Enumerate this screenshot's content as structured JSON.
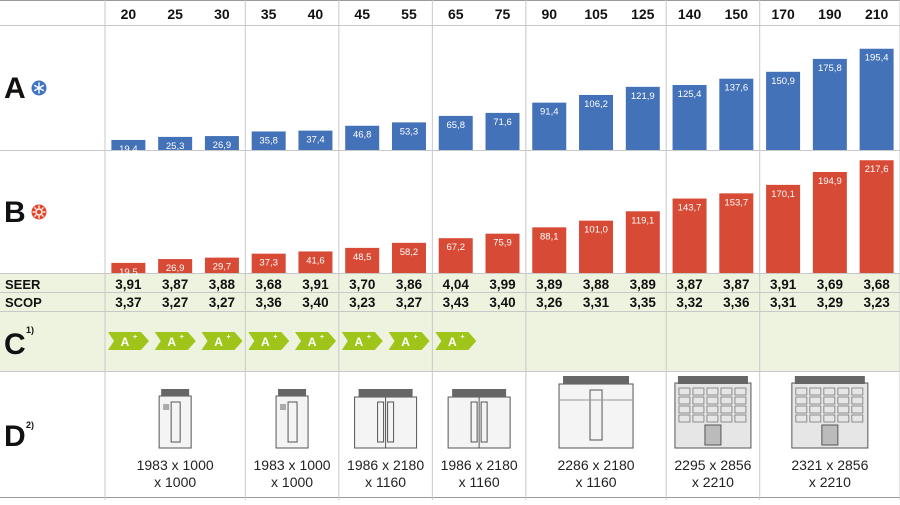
{
  "models": [
    "20",
    "25",
    "30",
    "35",
    "40",
    "45",
    "55",
    "65",
    "75",
    "90",
    "105",
    "125",
    "140",
    "150",
    "170",
    "190",
    "210"
  ],
  "chart_data": [
    {
      "type": "bar",
      "name": "A",
      "categories": [
        "20",
        "25",
        "30",
        "35",
        "40",
        "45",
        "55",
        "65",
        "75",
        "90",
        "105",
        "125",
        "140",
        "150",
        "170",
        "190",
        "210"
      ],
      "values": [
        19.4,
        25.3,
        26.9,
        35.8,
        37.4,
        46.8,
        53.3,
        65.8,
        71.6,
        91.4,
        106.2,
        121.9,
        125.4,
        137.6,
        150.9,
        175.8,
        195.4
      ],
      "labels": [
        "19,4",
        "25,3",
        "26,9",
        "35,8",
        "37,4",
        "46,8",
        "53,3",
        "65,8",
        "71,6",
        "91,4",
        "106,2",
        "121,9",
        "125,4",
        "137,6",
        "150,9",
        "175,8",
        "195,4"
      ],
      "ylim": [
        0,
        220
      ],
      "color": "#4472b8"
    },
    {
      "type": "bar",
      "name": "B",
      "categories": [
        "20",
        "25",
        "30",
        "35",
        "40",
        "45",
        "55",
        "65",
        "75",
        "90",
        "105",
        "125",
        "140",
        "150",
        "170",
        "190",
        "210"
      ],
      "values": [
        19.5,
        26.9,
        29.7,
        37.3,
        41.6,
        48.5,
        58.2,
        67.2,
        75.9,
        88.1,
        101.0,
        119.1,
        143.7,
        153.7,
        170.1,
        194.9,
        217.6
      ],
      "labels": [
        "19,5",
        "26,9",
        "29,7",
        "37,3",
        "41,6",
        "48,5",
        "58,2",
        "67,2",
        "75,9",
        "88,1",
        "101,0",
        "119,1",
        "143,7",
        "153,7",
        "170,1",
        "194,9",
        "217,6"
      ],
      "ylim": [
        0,
        220
      ],
      "color": "#d74a35"
    }
  ],
  "rows": {
    "a_label": "A",
    "b_label": "B",
    "c_label": "C",
    "c_sup": "1)",
    "d_label": "D",
    "d_sup": "2)",
    "seer_label": "SEER",
    "scop_label": "SCOP"
  },
  "seer": [
    "3,91",
    "3,87",
    "3,88",
    "3,68",
    "3,91",
    "3,70",
    "3,86",
    "4,04",
    "3,99",
    "3,89",
    "3,88",
    "3,89",
    "3,87",
    "3,87",
    "3,91",
    "3,69",
    "3,68"
  ],
  "scop": [
    "3,37",
    "3,27",
    "3,27",
    "3,36",
    "3,40",
    "3,23",
    "3,27",
    "3,43",
    "3,40",
    "3,26",
    "3,31",
    "3,35",
    "3,32",
    "3,36",
    "3,31",
    "3,29",
    "3,23"
  ],
  "energy_class": {
    "label": "A",
    "sup": "+",
    "count": 8,
    "color": "#9fc51a"
  },
  "groups": [
    {
      "models": 3,
      "dim1": "1983 x 1000",
      "dim2": "x 1000",
      "unit": "single"
    },
    {
      "models": 2,
      "dim1": "1983 x 1000",
      "dim2": "x 1000",
      "unit": "single"
    },
    {
      "models": 2,
      "dim1": "1986 x 2180",
      "dim2": "x 1160",
      "unit": "double"
    },
    {
      "models": 2,
      "dim1": "1986 x 2180",
      "dim2": "x 1160",
      "unit": "double"
    },
    {
      "models": 3,
      "dim1": "2286 x 2180",
      "dim2": "x 1160",
      "unit": "wide"
    },
    {
      "models": 2,
      "dim1": "2295 x 2856",
      "dim2": "x 2210",
      "unit": "large"
    },
    {
      "models": 3,
      "dim1": "2321 x 2856",
      "dim2": "x 2210",
      "unit": "large"
    }
  ],
  "colors": {
    "cool": "#4472b8",
    "heat": "#d74a35",
    "band": "#eef3e0",
    "grid": "#c8c8c8",
    "badge": "#9fc51a"
  }
}
